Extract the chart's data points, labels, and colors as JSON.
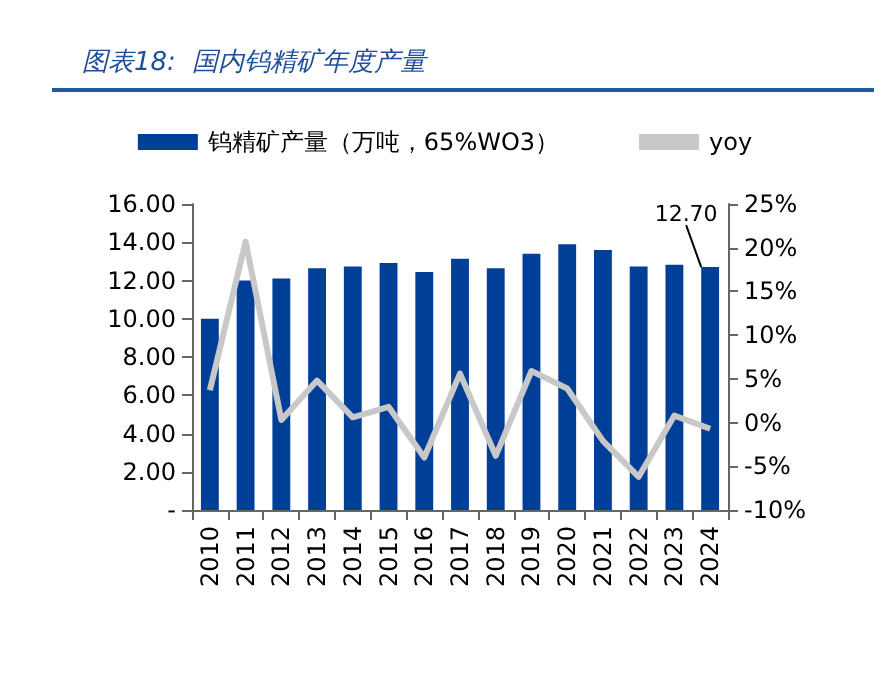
{
  "chart_data": {
    "type": "bar",
    "title": "图表18:  国内钨精矿年度产量",
    "categories": [
      "2010",
      "2011",
      "2012",
      "2013",
      "2014",
      "2015",
      "2016",
      "2017",
      "2018",
      "2019",
      "2020",
      "2021",
      "2022",
      "2023",
      "2024"
    ],
    "series": [
      {
        "name": "钨精矿产量（万吨，65%WO3）",
        "color": "#003f98",
        "values": [
          10.0,
          12.0,
          12.1,
          12.64,
          12.73,
          12.92,
          12.45,
          13.14,
          12.64,
          13.4,
          13.9,
          13.6,
          12.73,
          12.83,
          12.7
        ],
        "value_labels": [
          null,
          null,
          null,
          null,
          null,
          null,
          null,
          null,
          null,
          null,
          null,
          null,
          null,
          null,
          "12.70"
        ]
      },
      {
        "name": "yoy",
        "type": "line",
        "axis": "y2",
        "color": "#c8c8c8",
        "marker": "none",
        "values": [
          3.7,
          20.7,
          0.3,
          4.8,
          0.6,
          1.8,
          -4.0,
          5.6,
          -3.8,
          5.9,
          3.9,
          -2.1,
          -6.2,
          0.8,
          -0.7
        ]
      }
    ],
    "ylim": [
      0,
      16
    ],
    "yticks": [
      {
        "value": 0,
        "label": "-"
      },
      {
        "value": 2,
        "label": "2.00"
      },
      {
        "value": 4,
        "label": "4.00"
      },
      {
        "value": 6,
        "label": "6.00"
      },
      {
        "value": 8,
        "label": "8.00"
      },
      {
        "value": 10,
        "label": "10.00"
      },
      {
        "value": 12,
        "label": "12.00"
      },
      {
        "value": 14,
        "label": "14.00"
      },
      {
        "value": 16,
        "label": "16.00"
      }
    ],
    "y2lim": [
      -10,
      25
    ],
    "y2ticks": [
      {
        "value": -10,
        "label": "-10%"
      },
      {
        "value": -5,
        "label": "-5%"
      },
      {
        "value": 0,
        "label": "0%"
      },
      {
        "value": 5,
        "label": "5%"
      },
      {
        "value": 10,
        "label": "10%"
      },
      {
        "value": 15,
        "label": "15%"
      },
      {
        "value": 20,
        "label": "20%"
      },
      {
        "value": 25,
        "label": "25%"
      }
    ],
    "grid": false,
    "legend": "top"
  }
}
